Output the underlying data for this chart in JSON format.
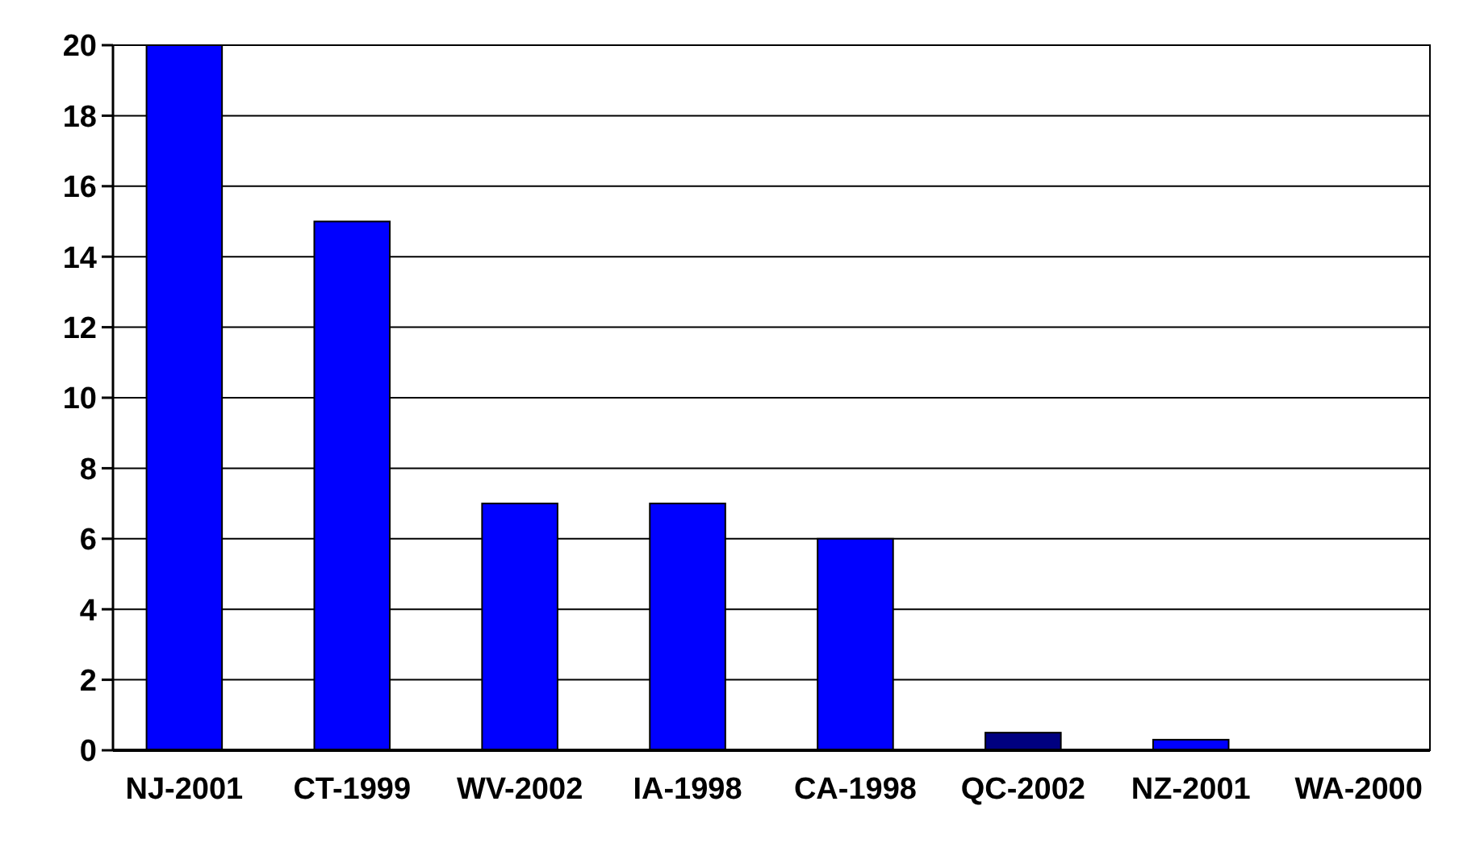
{
  "chart_data": {
    "type": "bar",
    "categories": [
      "NJ-2001",
      "CT-1999",
      "WV-2002",
      "IA-1998",
      "CA-1998",
      "QC-2002",
      "NZ-2001",
      "WA-2000"
    ],
    "values": [
      20,
      15,
      7,
      7,
      6,
      0.5,
      0.3,
      0
    ],
    "colors": [
      "#0000ff",
      "#0000ff",
      "#0000ff",
      "#0000ff",
      "#0000ff",
      "#000080",
      "#0000ff",
      "#0000cc"
    ],
    "ylim": [
      0,
      20
    ],
    "yticks": [
      0,
      2,
      4,
      6,
      8,
      10,
      12,
      14,
      16,
      18,
      20
    ],
    "grid": "y"
  }
}
